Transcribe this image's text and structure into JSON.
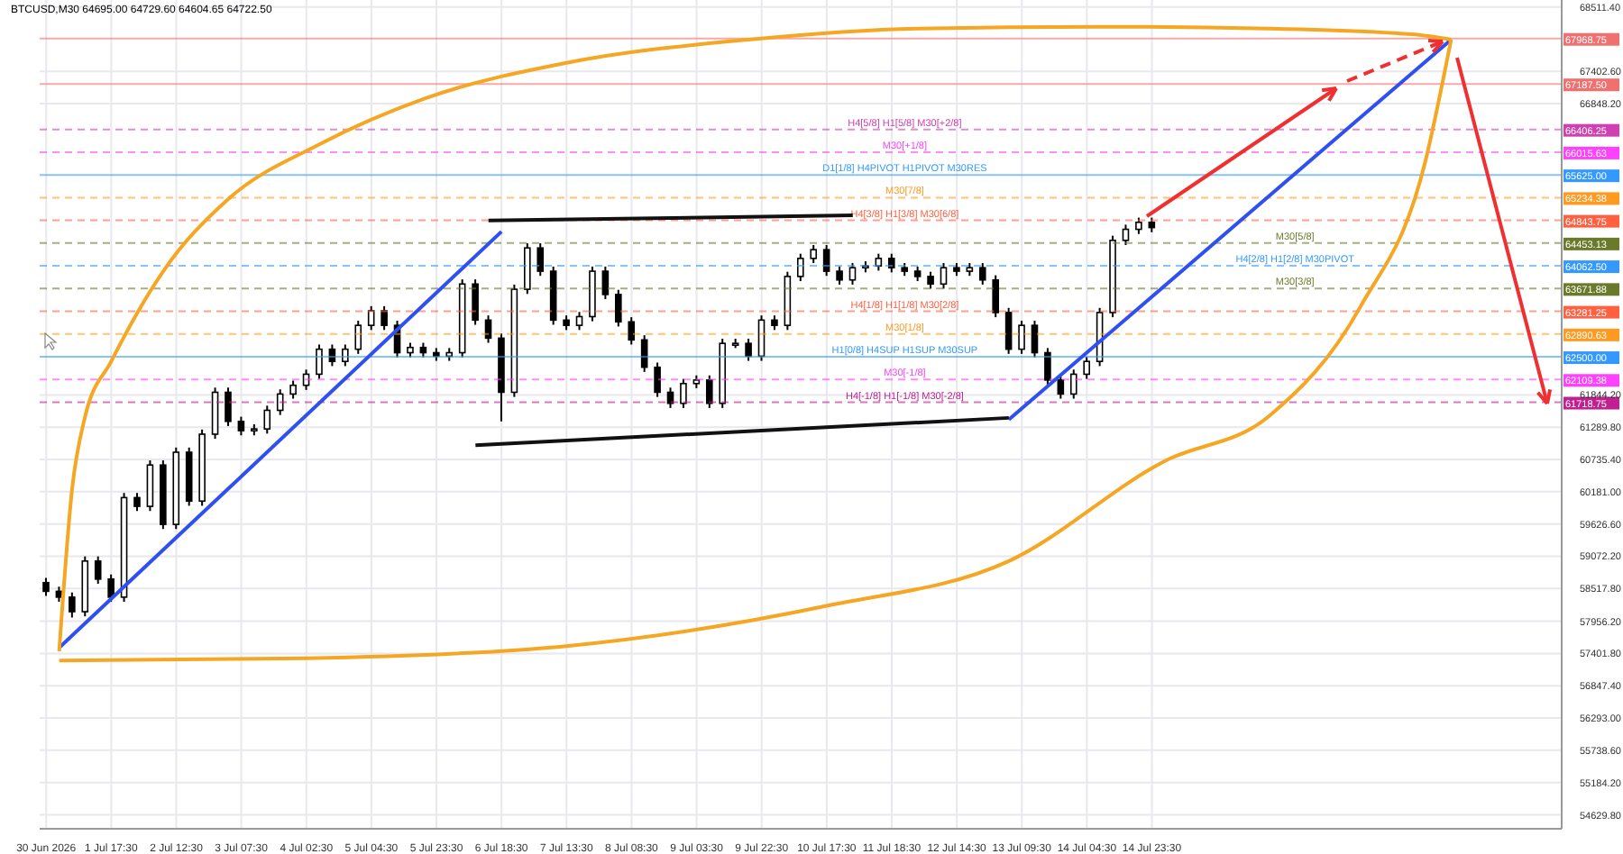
{
  "chart_data": {
    "type": "candlestick",
    "title": "BTCUSD,M30  64695.00 64729.60 64604.65 64722.50",
    "color": "#000000",
    "grid": true,
    "categories": [
      "30 Jun 2026",
      null,
      null,
      null,
      null,
      "1 Jul 17:30",
      null,
      null,
      null,
      null,
      "2 Jul 12:30",
      null,
      null,
      null,
      null,
      "3 Jul 07:30",
      null,
      null,
      null,
      null,
      "4 Jul 02:30",
      null,
      null,
      null,
      null,
      "5 Jul 04:30",
      null,
      null,
      null,
      null,
      "5 Jul 23:30",
      null,
      null,
      null,
      null,
      "6 Jul 18:30",
      null,
      null,
      null,
      null,
      "7 Jul 13:30",
      null,
      null,
      null,
      null,
      "8 Jul 08:30",
      null,
      null,
      null,
      null,
      "9 Jul 03:30",
      null,
      null,
      null,
      null,
      "9 Jul 22:30",
      null,
      null,
      null,
      null,
      "10 Jul 17:30",
      null,
      null,
      null,
      null,
      "11 Jul 18:30",
      null,
      null,
      null,
      null,
      "12 Jul 14:30",
      null,
      null,
      null,
      null,
      "13 Jul 09:30",
      null,
      null,
      null,
      null,
      "14 Jul 04:30",
      null,
      null,
      null,
      null,
      "14 Jul 23:30",
      null,
      null,
      null,
      null,
      null,
      null,
      null,
      null,
      null,
      null,
      null,
      null,
      null,
      null,
      null,
      null,
      null,
      null,
      null,
      null,
      null,
      null,
      null,
      null,
      null,
      null,
      null,
      null,
      null,
      null,
      null
    ],
    "ohlc": [
      [
        58620,
        58700,
        58390,
        58470
      ],
      [
        58470,
        58550,
        58290,
        58370
      ],
      [
        58370,
        58450,
        58020,
        58120
      ],
      [
        58120,
        59070,
        58040,
        58990
      ],
      [
        58990,
        59070,
        58600,
        58680
      ],
      [
        58680,
        58760,
        58290,
        58370
      ],
      [
        58370,
        60160,
        58290,
        60080
      ],
      [
        60080,
        60160,
        59850,
        59930
      ],
      [
        59930,
        60720,
        59850,
        60640
      ],
      [
        60640,
        60720,
        59540,
        59620
      ],
      [
        59620,
        60940,
        59540,
        60860
      ],
      [
        60860,
        60940,
        59940,
        60020
      ],
      [
        60020,
        61250,
        59940,
        61170
      ],
      [
        61170,
        61970,
        61090,
        61890
      ],
      [
        61890,
        61970,
        61310,
        61390
      ],
      [
        61390,
        61470,
        61150,
        61230
      ],
      [
        61230,
        61340,
        61150,
        61260
      ],
      [
        61260,
        61660,
        61180,
        61580
      ],
      [
        61580,
        61940,
        61500,
        61860
      ],
      [
        61860,
        62090,
        61780,
        62010
      ],
      [
        62010,
        62280,
        61930,
        62200
      ],
      [
        62200,
        62710,
        62120,
        62630
      ],
      [
        62630,
        62710,
        62340,
        62420
      ],
      [
        62420,
        62710,
        62340,
        62630
      ],
      [
        62630,
        63120,
        62550,
        63040
      ],
      [
        63040,
        63370,
        62960,
        63290
      ],
      [
        63290,
        63370,
        62960,
        63040
      ],
      [
        63040,
        63120,
        62490,
        62570
      ],
      [
        62570,
        62740,
        62490,
        62660
      ],
      [
        62660,
        62740,
        62490,
        62570
      ],
      [
        62570,
        62650,
        62430,
        62510
      ],
      [
        62510,
        62650,
        62430,
        62570
      ],
      [
        62570,
        63830,
        62490,
        63750
      ],
      [
        63750,
        63830,
        63050,
        63130
      ],
      [
        63130,
        63210,
        62740,
        62820
      ],
      [
        62820,
        62900,
        61390,
        61890
      ],
      [
        61890,
        63740,
        61810,
        63660
      ],
      [
        63660,
        64450,
        63580,
        64370
      ],
      [
        64370,
        64450,
        63890,
        63970
      ],
      [
        63970,
        64050,
        63050,
        63130
      ],
      [
        63130,
        63210,
        62960,
        63040
      ],
      [
        63040,
        63270,
        62960,
        63190
      ],
      [
        63190,
        64050,
        63110,
        63970
      ],
      [
        63970,
        64050,
        63490,
        63570
      ],
      [
        63570,
        63650,
        63020,
        63100
      ],
      [
        63100,
        63180,
        62710,
        62790
      ],
      [
        62790,
        62870,
        62240,
        62320
      ],
      [
        62320,
        62400,
        61810,
        61890
      ],
      [
        61890,
        61970,
        61620,
        61700
      ],
      [
        61700,
        62120,
        61620,
        62040
      ],
      [
        62040,
        62180,
        61960,
        62100
      ],
      [
        62100,
        62180,
        61620,
        61700
      ],
      [
        61700,
        62810,
        61620,
        62730
      ],
      [
        62730,
        62810,
        62650,
        62730
      ],
      [
        62730,
        62810,
        62430,
        62510
      ],
      [
        62510,
        63210,
        62430,
        63130
      ],
      [
        63130,
        63210,
        62960,
        63040
      ],
      [
        63040,
        63960,
        62960,
        63880
      ],
      [
        63880,
        64270,
        63800,
        64190
      ],
      [
        64190,
        64420,
        64110,
        64340
      ],
      [
        64340,
        64420,
        63890,
        63970
      ],
      [
        63970,
        64050,
        63740,
        63820
      ],
      [
        63820,
        64110,
        63740,
        64030
      ],
      [
        64030,
        64140,
        63950,
        64060
      ],
      [
        64060,
        64270,
        63980,
        64190
      ],
      [
        64190,
        64270,
        63950,
        64030
      ],
      [
        64030,
        64110,
        63890,
        63970
      ],
      [
        63970,
        64050,
        63800,
        63880
      ],
      [
        63880,
        63960,
        63670,
        63750
      ],
      [
        63750,
        64110,
        63670,
        64030
      ],
      [
        64030,
        64110,
        63890,
        63970
      ],
      [
        63970,
        64110,
        63890,
        64030
      ],
      [
        64030,
        64110,
        63740,
        63820
      ],
      [
        63820,
        63900,
        63180,
        63260
      ],
      [
        63260,
        63340,
        62550,
        62630
      ],
      [
        62630,
        63120,
        62550,
        63040
      ],
      [
        63040,
        63120,
        62490,
        62570
      ],
      [
        62570,
        62650,
        62020,
        62100
      ],
      [
        62100,
        62180,
        61780,
        61860
      ],
      [
        61860,
        62280,
        61780,
        62200
      ],
      [
        62200,
        62500,
        62120,
        62420
      ],
      [
        62420,
        63340,
        62340,
        63260
      ],
      [
        63260,
        64580,
        63180,
        64500
      ],
      [
        64500,
        64770,
        64420,
        64690
      ],
      [
        64690,
        64890,
        64610,
        64810
      ],
      [
        64810,
        64890,
        64640,
        64720
      ],
      null,
      null,
      null,
      null,
      null,
      null,
      null,
      null,
      null,
      null,
      null,
      null,
      null,
      null,
      null,
      null,
      null,
      null,
      null,
      null,
      null,
      null,
      null,
      null,
      null,
      null,
      null,
      null,
      null,
      null,
      null
    ],
    "series": [
      {
        "type": "line",
        "color": "#2f4ff0",
        "values": [
          null,
          57500,
          null,
          null,
          null,
          null,
          null,
          null,
          null,
          null,
          null,
          null,
          null,
          null,
          null,
          null,
          null,
          null,
          null,
          null,
          null,
          null,
          null,
          null,
          null,
          null,
          null,
          null,
          null,
          null,
          null,
          null,
          null,
          null,
          null,
          64650,
          null,
          null,
          null,
          null,
          null,
          null,
          null,
          null,
          null,
          null,
          null,
          null,
          null,
          null,
          null,
          null,
          null,
          null,
          null,
          null,
          null,
          null,
          null,
          null,
          null,
          null,
          null,
          null,
          null,
          null,
          null,
          null,
          null,
          null,
          null,
          null,
          null,
          null,
          null,
          null,
          null,
          null,
          null,
          null,
          null,
          null,
          null,
          null,
          null,
          null,
          null,
          null,
          null,
          null,
          null,
          null,
          null,
          null,
          null,
          null,
          null,
          null,
          null,
          null,
          null,
          null,
          null,
          null,
          null,
          null,
          null,
          null,
          null,
          null,
          null,
          null,
          null,
          null,
          null,
          null,
          null
        ]
      },
      {
        "type": "line",
        "color": "#2f4ff0",
        "values": [
          null,
          null,
          null,
          null,
          null,
          null,
          null,
          null,
          null,
          null,
          null,
          null,
          null,
          null,
          null,
          null,
          null,
          null,
          null,
          null,
          null,
          null,
          null,
          null,
          null,
          null,
          null,
          null,
          null,
          null,
          null,
          null,
          null,
          null,
          null,
          null,
          null,
          null,
          null,
          null,
          null,
          null,
          null,
          null,
          null,
          null,
          null,
          null,
          null,
          null,
          null,
          null,
          null,
          null,
          null,
          null,
          null,
          null,
          null,
          null,
          null,
          null,
          null,
          null,
          null,
          null,
          null,
          null,
          null,
          null,
          null,
          null,
          null,
          null,
          61420,
          null,
          null,
          null,
          null,
          null,
          null,
          null,
          null,
          null,
          null,
          null,
          null,
          null,
          null,
          null,
          null,
          null,
          null,
          null,
          null,
          null,
          null,
          null,
          null,
          null,
          null,
          null,
          null,
          null,
          null,
          null,
          null,
          null,
          67950,
          null,
          null,
          null,
          null,
          null,
          null,
          null,
          null
        ]
      },
      {
        "type": "line",
        "color": "#111111",
        "values": [
          null,
          null,
          null,
          null,
          null,
          null,
          null,
          null,
          null,
          null,
          null,
          null,
          null,
          null,
          null,
          null,
          null,
          null,
          null,
          null,
          null,
          null,
          null,
          null,
          null,
          null,
          null,
          null,
          null,
          null,
          null,
          null,
          null,
          null,
          64840,
          null,
          null,
          null,
          null,
          null,
          null,
          null,
          null,
          null,
          null,
          null,
          null,
          null,
          null,
          null,
          null,
          null,
          null,
          null,
          null,
          null,
          null,
          null,
          null,
          null,
          null,
          null,
          64930,
          null,
          null,
          null,
          null,
          null,
          null,
          null,
          null,
          null,
          null,
          null,
          null,
          null,
          null,
          null,
          null,
          null,
          null,
          null,
          null,
          null,
          null,
          null,
          null,
          null,
          null,
          null,
          null,
          null,
          null,
          null,
          null,
          null,
          null,
          null,
          null,
          null,
          null,
          null,
          null,
          null,
          null,
          null,
          null,
          null,
          null,
          null,
          null,
          null,
          null,
          null,
          null,
          null,
          null
        ]
      },
      {
        "type": "line",
        "color": "#111111",
        "values": [
          null,
          null,
          null,
          null,
          null,
          null,
          null,
          null,
          null,
          null,
          null,
          null,
          null,
          null,
          null,
          null,
          null,
          null,
          null,
          null,
          null,
          null,
          null,
          null,
          null,
          null,
          null,
          null,
          null,
          null,
          null,
          null,
          null,
          60980,
          null,
          null,
          null,
          null,
          null,
          null,
          null,
          null,
          null,
          null,
          null,
          null,
          null,
          null,
          null,
          null,
          null,
          null,
          null,
          null,
          null,
          null,
          null,
          null,
          null,
          null,
          null,
          null,
          null,
          null,
          null,
          null,
          null,
          null,
          null,
          null,
          null,
          null,
          null,
          null,
          61450,
          null,
          null,
          null,
          null,
          null,
          null,
          null,
          null,
          null,
          null,
          null,
          null,
          null,
          null,
          null,
          null,
          null,
          null,
          null,
          null,
          null,
          null,
          null,
          null,
          null,
          null,
          null,
          null,
          null,
          null,
          null,
          null,
          null,
          null,
          null,
          null,
          null,
          null,
          null,
          null,
          null,
          null
        ]
      },
      {
        "type": "line",
        "color": "#f5a623",
        "values": [
          null,
          57440,
          60240,
          61480,
          null,
          62420,
          null,
          null,
          null,
          63970,
          null,
          null,
          null,
          null,
          65210,
          null,
          null,
          null,
          null,
          null,
          null,
          66150,
          null,
          null,
          null,
          null,
          null,
          null,
          null,
          66930,
          null,
          null,
          null,
          null,
          null,
          null,
          null,
          null,
          null,
          null,
          67550,
          null,
          null,
          null,
          null,
          null,
          null,
          null,
          null,
          null,
          null,
          null,
          null,
          null,
          67950,
          null,
          null,
          null,
          null,
          null,
          null,
          null,
          null,
          null,
          null,
          null,
          null,
          68140,
          null,
          null,
          null,
          null,
          null,
          null,
          null,
          null,
          null,
          null,
          null,
          null,
          null,
          68170,
          null,
          null,
          null,
          null,
          null,
          null,
          null,
          null,
          null,
          null,
          null,
          null,
          68140,
          null,
          null,
          null,
          null,
          null,
          null,
          null,
          null,
          null,
          null,
          68040,
          null,
          null,
          67950,
          null,
          null,
          null,
          null,
          null,
          null,
          null,
          null
        ]
      },
      {
        "type": "line",
        "color": "#f5a623",
        "values": [
          null,
          57280,
          null,
          null,
          null,
          null,
          null,
          null,
          null,
          null,
          null,
          null,
          null,
          null,
          null,
          null,
          null,
          null,
          null,
          null,
          57320,
          null,
          null,
          null,
          null,
          null,
          null,
          null,
          null,
          null,
          null,
          null,
          null,
          null,
          null,
          null,
          null,
          null,
          null,
          null,
          57530,
          null,
          null,
          null,
          null,
          null,
          null,
          null,
          null,
          null,
          null,
          null,
          null,
          null,
          null,
          null,
          null,
          null,
          null,
          null,
          58220,
          null,
          null,
          null,
          null,
          null,
          null,
          null,
          null,
          null,
          null,
          null,
          null,
          null,
          58990,
          null,
          null,
          null,
          null,
          null,
          null,
          null,
          null,
          null,
          null,
          null,
          60710,
          null,
          null,
          null,
          null,
          null,
          null,
          null,
          61480,
          null,
          null,
          null,
          null,
          null,
          null,
          63350,
          null,
          null,
          null,
          null,
          65840,
          null,
          67950,
          null,
          null,
          null,
          null,
          null,
          null,
          null,
          null
        ]
      }
    ],
    "ylim": [
      54390,
      68630
    ],
    "annotations": [
      "67968.75",
      "67187.50",
      "66406.25",
      "66015.63",
      "65625.00",
      "65234.38",
      "64843.75",
      "64453.13",
      "64062.50",
      "63671.88",
      "63281.25",
      "62890.63",
      "62500.00",
      "62109.38",
      "61718.75"
    ],
    "yticks": [
      {
        "value": 68511.4,
        "label": "68511.40"
      },
      {
        "value": 67402.6,
        "label": "67402.60"
      },
      {
        "value": 66848.2,
        "label": "66848.20"
      },
      {
        "value": 61844.2,
        "label": "61844.20"
      },
      {
        "value": 61289.8,
        "label": "61289.80"
      },
      {
        "value": 60735.4,
        "label": "60735.40"
      },
      {
        "value": 60181,
        "label": "60181.00"
      },
      {
        "value": 59626.6,
        "label": "59626.60"
      },
      {
        "value": 59072.2,
        "label": "59072.20"
      },
      {
        "value": 58517.8,
        "label": "58517.80"
      },
      {
        "value": 57956.2,
        "label": "57956.20"
      },
      {
        "value": 57401.8,
        "label": "57401.80"
      },
      {
        "value": 56847.4,
        "label": "56847.40"
      },
      {
        "value": 56293,
        "label": "56293.00"
      },
      {
        "value": 55738.6,
        "label": "55738.60"
      },
      {
        "value": 55184.2,
        "label": "55184.20"
      },
      {
        "value": 54629.8,
        "label": "54629.80"
      }
    ],
    "ref_lines": [
      {
        "axis": "y",
        "value": 67968.75,
        "label": null,
        "color": "#f07070",
        "line_style": "solid"
      },
      {
        "axis": "y",
        "value": 67187.5,
        "label": null,
        "color": "#f07070",
        "line_style": "solid"
      },
      {
        "axis": "y",
        "value": 66406.25,
        "label": "H4[5/8] H1[5/8] M30[+2/8]",
        "color": "#d040b0",
        "line_style": "dashed"
      },
      {
        "axis": "y",
        "value": 66015.63,
        "label": "M30[+1/8]",
        "color": "#ff40ff",
        "line_style": "dashed"
      },
      {
        "axis": "y",
        "value": 65625,
        "label": "D1[1/8] H4PIVOT H1PIVOT M30RES",
        "color": "#3399ff",
        "line_style": "solid"
      },
      {
        "axis": "y",
        "value": 65234.38,
        "label": "M30[7/8]",
        "color": "#ff9a20",
        "line_style": "dashed"
      },
      {
        "axis": "y",
        "value": 64843.75,
        "label": "H4[3/8] H1[3/8] M30[6/8]",
        "color": "#ff6040",
        "line_style": "dashed"
      },
      {
        "axis": "y",
        "value": 64453.13,
        "label": "M30[5/8]",
        "color": "#6b7a2a",
        "line_style": "dashed"
      },
      {
        "axis": "y",
        "value": 64062.5,
        "label": "H4[2/8] H1[2/8] M30PIVOT",
        "color": "#3399ff",
        "line_style": "dashed"
      },
      {
        "axis": "y",
        "value": 63671.88,
        "label": "M30[3/8]",
        "color": "#6b7a2a",
        "line_style": "dashed"
      },
      {
        "axis": "y",
        "value": 63281.25,
        "label": "H4[1/8] H1[1/8] M30[2/8]",
        "color": "#ff6040",
        "line_style": "dashed"
      },
      {
        "axis": "y",
        "value": 62890.63,
        "label": "M30[1/8]",
        "color": "#ff9a20",
        "line_style": "dashed"
      },
      {
        "axis": "y",
        "value": 62500,
        "label": "H1[0/8] H4SUP H1SUP M30SUP",
        "color": "#3399ff",
        "line_style": "solid"
      },
      {
        "axis": "y",
        "value": 62109.38,
        "label": "M30[-1/8]",
        "color": "#ff40ff",
        "line_style": "dashed"
      },
      {
        "axis": "y",
        "value": 61718.75,
        "label": "H4[-1/8] H1[-1/8] M30[-2/8]",
        "color": "#c02090",
        "line_style": "dashed"
      }
    ]
  }
}
